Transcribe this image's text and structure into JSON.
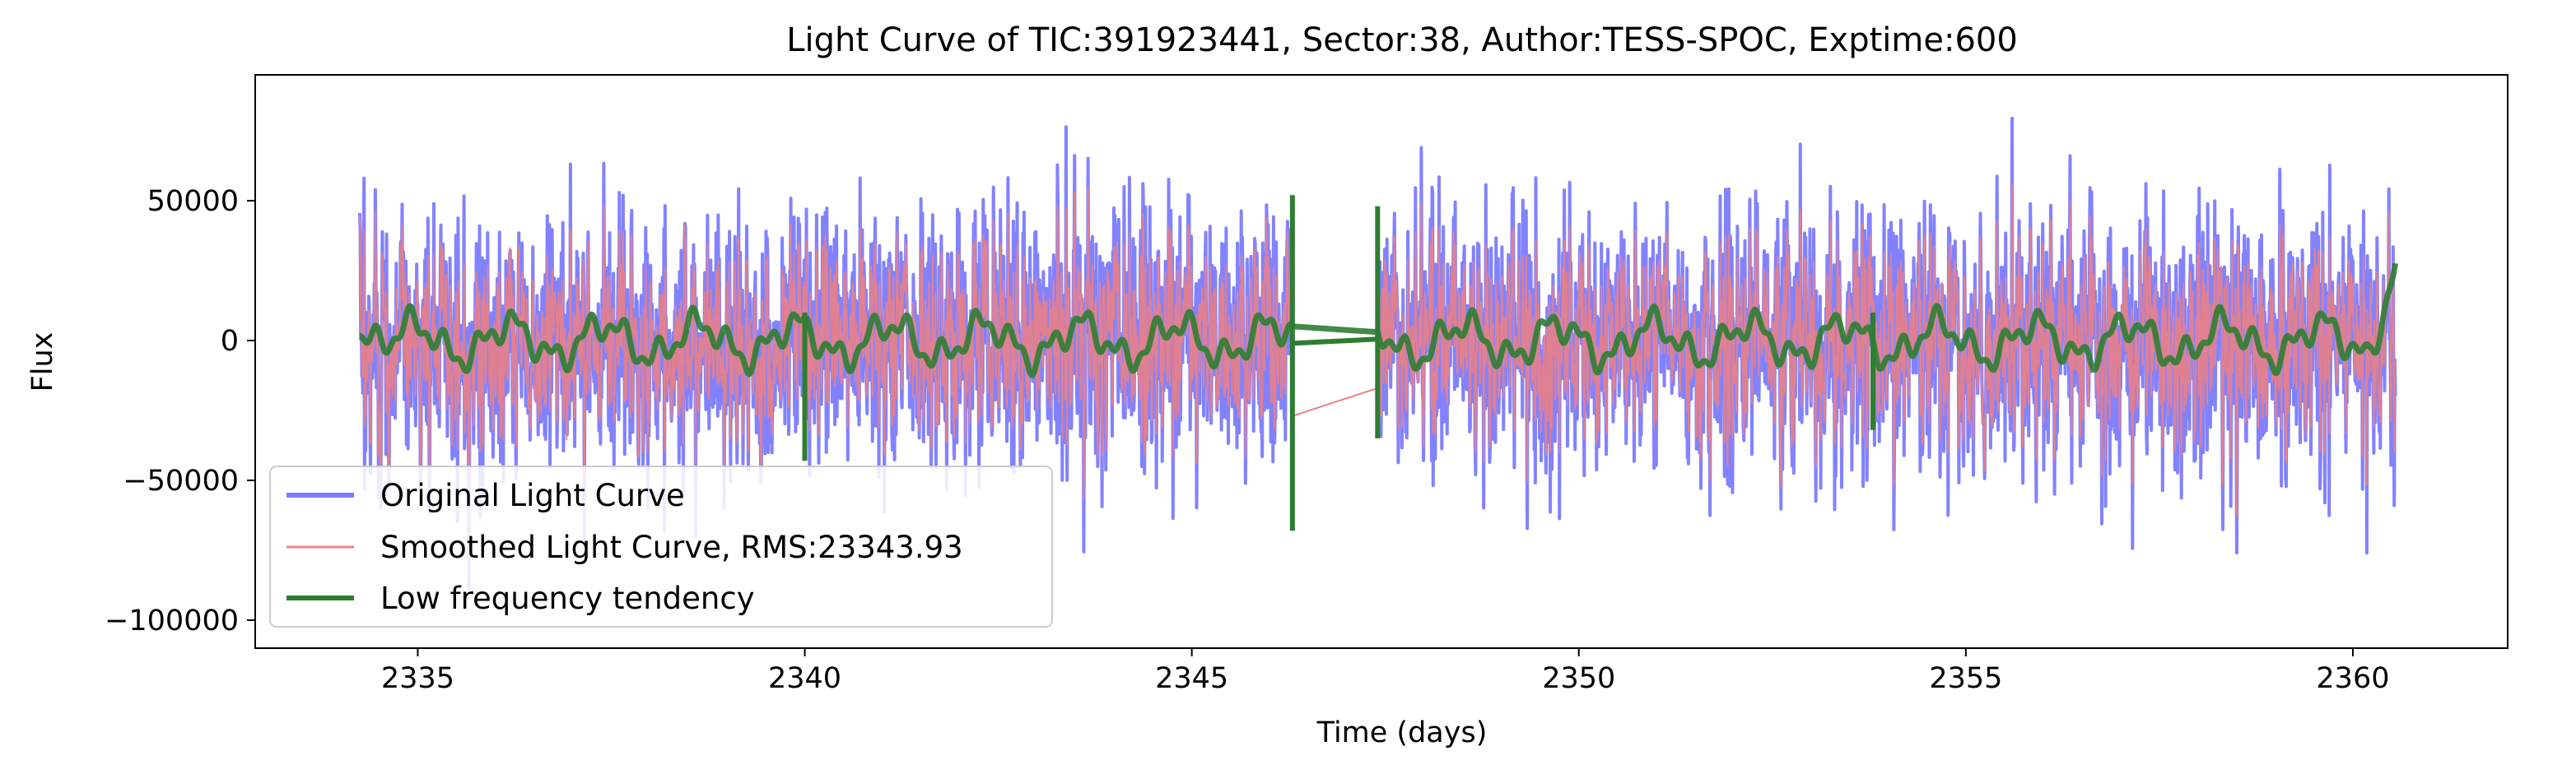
{
  "chart_data": {
    "type": "line",
    "title": "Light Curve of TIC:391923441, Sector:38, Author:TESS-SPOC, Exptime:600",
    "xlabel": "Time (days)",
    "ylabel": "Flux",
    "xlim": [
      2332.9,
      2362.0
    ],
    "ylim": [
      -110000,
      95000
    ],
    "xticks": [
      2335,
      2340,
      2345,
      2350,
      2355,
      2360
    ],
    "xtick_labels": [
      "2335",
      "2340",
      "2345",
      "2350",
      "2355",
      "2360"
    ],
    "yticks": [
      -100000,
      -50000,
      0,
      50000
    ],
    "ytick_labels": [
      "−100000",
      "−50000",
      "0",
      "50000"
    ],
    "grid": false,
    "legend_position": "lower-left",
    "time_range": [
      2334.25,
      2360.55
    ],
    "gap": [
      2346.3,
      2347.4
    ],
    "series": [
      {
        "name": "Original Light Curve",
        "color": "#7b7bff",
        "summary": {
          "typical_min": -50000,
          "typical_max": 55000,
          "max": 85000,
          "min": -100000,
          "rms_like": 23000
        }
      },
      {
        "name": "Smoothed Light Curve, RMS:23343.93",
        "color": "#f08080",
        "summary": {
          "typical_min": -45000,
          "typical_max": 50000,
          "max": 83000,
          "min": -98000
        }
      },
      {
        "name": "Low frequency tendency",
        "color": "#2e7d32",
        "summary": {
          "typical_min": -15000,
          "typical_max": 15000,
          "spikes": [
            {
              "x": 2340.0,
              "min": -43000,
              "max": 10000
            },
            {
              "x": 2346.3,
              "min": -68000,
              "max": 52000
            },
            {
              "x": 2347.4,
              "min": -35000,
              "max": 48000
            },
            {
              "x": 2353.8,
              "min": -32000,
              "max": 10000
            },
            {
              "x": 2360.55,
              "value": 27000
            }
          ]
        }
      }
    ],
    "legend": [
      {
        "label": "Original Light Curve",
        "color": "#7b7bff"
      },
      {
        "label": "Smoothed Light Curve, RMS:23343.93",
        "color": "#f08080"
      },
      {
        "label": "Low frequency tendency",
        "color": "#2e7d32"
      }
    ]
  }
}
